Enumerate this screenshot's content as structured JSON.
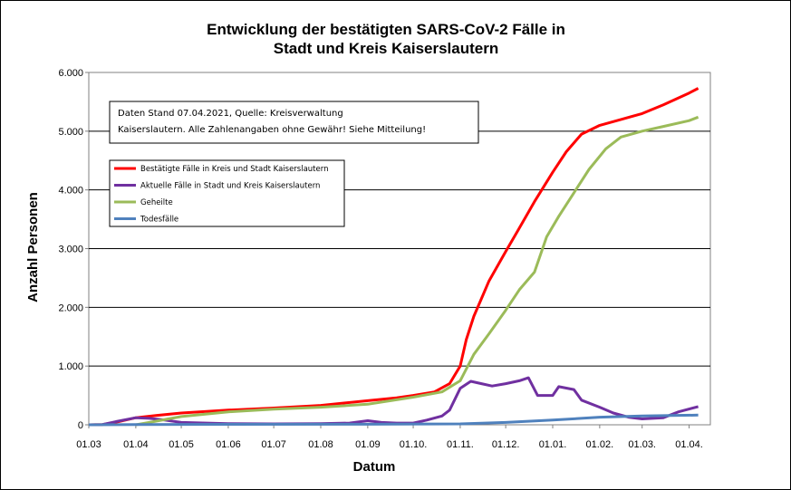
{
  "chart_data": {
    "type": "line",
    "title_line1": "Entwicklung der bestätigten SARS-CoV-2 Fälle in",
    "title_line2": "Stadt und Kreis Kaiserslautern",
    "xlabel": "Datum",
    "ylabel": "Anzahl Personen",
    "ylim": [
      0,
      6000
    ],
    "y_ticks": [
      0,
      1000,
      2000,
      3000,
      4000,
      5000,
      6000
    ],
    "y_tick_labels": [
      "0",
      "1.000",
      "2.000",
      "3.000",
      "4.000",
      "5.000",
      "6.000"
    ],
    "x_range": [
      "2020-03-01",
      "2021-04-15"
    ],
    "x_ticks": [
      "2020-03-01",
      "2020-04-01",
      "2020-05-01",
      "2020-06-01",
      "2020-07-01",
      "2020-08-01",
      "2020-09-01",
      "2020-10-01",
      "2020-11-01",
      "2020-12-01",
      "2021-01-01",
      "2021-02-01",
      "2021-03-01",
      "2021-04-01"
    ],
    "x_tick_labels": [
      "01.03",
      "01.04",
      "01.05",
      "01.06",
      "01.07",
      "01.08",
      "01.09",
      "01.10.",
      "01.11.",
      "01.12.",
      "01.01.",
      "01.02.",
      "01.03.",
      "01.04."
    ],
    "grid": "horizontal",
    "legend_position": "top-left",
    "note_line1": "Daten Stand 07.04.2021, Quelle: Kreisverwaltung",
    "note_line2": "Kaiserslautern. Alle Zahlenangaben ohne Gewähr! Siehe Mitteilung!",
    "series": [
      {
        "name": "Bestätigte Fälle in Kreis und Stadt Kaiserslautern",
        "color": "#FF0000",
        "points": [
          [
            "2020-03-01",
            0
          ],
          [
            "2020-03-10",
            5
          ],
          [
            "2020-03-20",
            50
          ],
          [
            "2020-04-01",
            120
          ],
          [
            "2020-04-15",
            160
          ],
          [
            "2020-05-01",
            200
          ],
          [
            "2020-06-01",
            250
          ],
          [
            "2020-07-01",
            285
          ],
          [
            "2020-08-01",
            330
          ],
          [
            "2020-09-01",
            410
          ],
          [
            "2020-09-20",
            460
          ],
          [
            "2020-10-01",
            500
          ],
          [
            "2020-10-15",
            560
          ],
          [
            "2020-10-25",
            700
          ],
          [
            "2020-11-01",
            1000
          ],
          [
            "2020-11-05",
            1450
          ],
          [
            "2020-11-10",
            1850
          ],
          [
            "2020-11-15",
            2150
          ],
          [
            "2020-11-20",
            2450
          ],
          [
            "2020-12-01",
            2950
          ],
          [
            "2020-12-10",
            3350
          ],
          [
            "2020-12-20",
            3800
          ],
          [
            "2021-01-01",
            4300
          ],
          [
            "2021-01-10",
            4650
          ],
          [
            "2021-01-20",
            4950
          ],
          [
            "2021-02-01",
            5100
          ],
          [
            "2021-02-15",
            5200
          ],
          [
            "2021-03-01",
            5300
          ],
          [
            "2021-03-15",
            5450
          ],
          [
            "2021-04-01",
            5650
          ],
          [
            "2021-04-07",
            5730
          ]
        ]
      },
      {
        "name": "Aktuelle Fälle in Stadt und Kreis Kaiserslautern",
        "color": "#7030A0",
        "points": [
          [
            "2020-03-01",
            0
          ],
          [
            "2020-03-10",
            5
          ],
          [
            "2020-03-20",
            60
          ],
          [
            "2020-04-01",
            120
          ],
          [
            "2020-04-10",
            110
          ],
          [
            "2020-04-20",
            80
          ],
          [
            "2020-05-01",
            40
          ],
          [
            "2020-06-01",
            20
          ],
          [
            "2020-07-01",
            15
          ],
          [
            "2020-08-01",
            20
          ],
          [
            "2020-08-20",
            30
          ],
          [
            "2020-09-01",
            70
          ],
          [
            "2020-09-10",
            40
          ],
          [
            "2020-09-20",
            30
          ],
          [
            "2020-10-01",
            30
          ],
          [
            "2020-10-10",
            80
          ],
          [
            "2020-10-20",
            150
          ],
          [
            "2020-10-25",
            250
          ],
          [
            "2020-11-01",
            620
          ],
          [
            "2020-11-08",
            740
          ],
          [
            "2020-11-15",
            700
          ],
          [
            "2020-11-22",
            660
          ],
          [
            "2020-12-01",
            700
          ],
          [
            "2020-12-10",
            750
          ],
          [
            "2020-12-16",
            800
          ],
          [
            "2020-12-22",
            500
          ],
          [
            "2021-01-01",
            500
          ],
          [
            "2021-01-05",
            650
          ],
          [
            "2021-01-15",
            600
          ],
          [
            "2021-01-20",
            420
          ],
          [
            "2021-02-01",
            300
          ],
          [
            "2021-02-10",
            200
          ],
          [
            "2021-02-20",
            130
          ],
          [
            "2021-03-01",
            100
          ],
          [
            "2021-03-15",
            120
          ],
          [
            "2021-03-25",
            220
          ],
          [
            "2021-04-07",
            310
          ]
        ]
      },
      {
        "name": "Geheilte",
        "color": "#9BBB59",
        "points": [
          [
            "2020-04-01",
            0
          ],
          [
            "2020-04-10",
            40
          ],
          [
            "2020-05-01",
            140
          ],
          [
            "2020-06-01",
            220
          ],
          [
            "2020-07-01",
            265
          ],
          [
            "2020-08-01",
            300
          ],
          [
            "2020-09-01",
            350
          ],
          [
            "2020-10-01",
            470
          ],
          [
            "2020-10-20",
            560
          ],
          [
            "2020-11-01",
            750
          ],
          [
            "2020-11-10",
            1200
          ],
          [
            "2020-11-20",
            1550
          ],
          [
            "2020-12-01",
            1950
          ],
          [
            "2020-12-10",
            2300
          ],
          [
            "2020-12-20",
            2600
          ],
          [
            "2020-12-28",
            3200
          ],
          [
            "2021-01-05",
            3550
          ],
          [
            "2021-01-15",
            3950
          ],
          [
            "2021-01-25",
            4350
          ],
          [
            "2021-02-05",
            4700
          ],
          [
            "2021-02-15",
            4900
          ],
          [
            "2021-03-01",
            5000
          ],
          [
            "2021-03-15",
            5080
          ],
          [
            "2021-04-01",
            5180
          ],
          [
            "2021-04-07",
            5240
          ]
        ]
      },
      {
        "name": "Todesfälle",
        "color": "#4F81BD",
        "points": [
          [
            "2020-03-01",
            0
          ],
          [
            "2020-04-01",
            5
          ],
          [
            "2020-06-01",
            8
          ],
          [
            "2020-09-01",
            10
          ],
          [
            "2020-11-01",
            15
          ],
          [
            "2020-12-01",
            40
          ],
          [
            "2021-01-01",
            80
          ],
          [
            "2021-02-01",
            130
          ],
          [
            "2021-03-01",
            150
          ],
          [
            "2021-04-07",
            165
          ]
        ]
      }
    ]
  }
}
